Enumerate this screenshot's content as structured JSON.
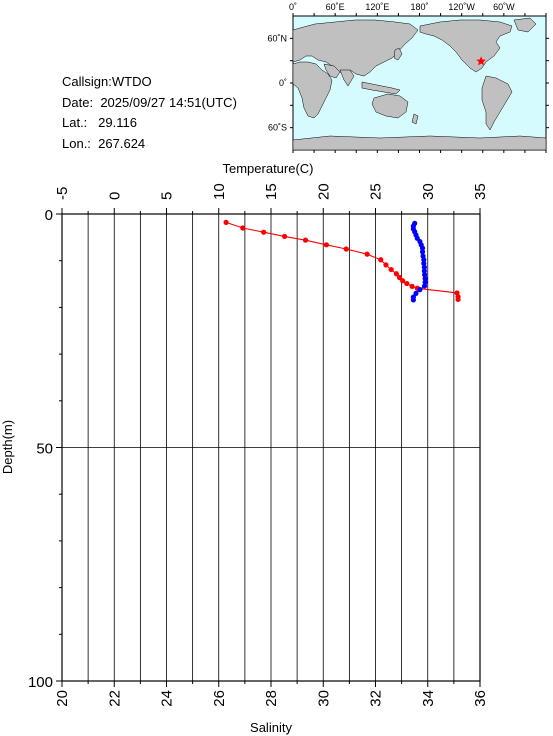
{
  "info": {
    "callsign_label": "Callsign:",
    "callsign": "WTDO",
    "date_label": "Date:",
    "date": "2025/09/27 14:51(UTC)",
    "lat_label": "Lat.:",
    "lat": "29.116",
    "lon_label": "Lon.:",
    "lon": "267.624"
  },
  "map": {
    "top_labels": [
      "0˚",
      "60˚E",
      "120˚E",
      "180˚",
      "120˚W",
      "60˚W"
    ],
    "left_labels": [
      "60˚N",
      "0˚",
      "60˚S"
    ],
    "ocean_color": "#d6fbff",
    "land_color": "#c0c0c0",
    "marker_color": "#ff0000",
    "marker_icon": "star-icon"
  },
  "chart_data": {
    "type": "line",
    "top_axis": {
      "label": "Temperature(C)",
      "range": [
        -5,
        35
      ],
      "ticks": [
        -5,
        0,
        5,
        10,
        15,
        20,
        25,
        30,
        35
      ]
    },
    "bottom_axis": {
      "label": "Salinity",
      "range": [
        20,
        36
      ],
      "ticks": [
        20,
        22,
        24,
        26,
        28,
        30,
        32,
        34,
        36
      ]
    },
    "y_axis": {
      "label": "Depth(m)",
      "range": [
        0,
        100
      ],
      "inverted": true,
      "ticks": [
        0,
        50,
        100
      ]
    },
    "grid": true,
    "series": [
      {
        "axis": "temperature",
        "color": "#ff0000",
        "points": [
          {
            "x": 10.7,
            "y": 1.8
          },
          {
            "x": 12.3,
            "y": 3.0
          },
          {
            "x": 14.3,
            "y": 3.9
          },
          {
            "x": 16.3,
            "y": 4.8
          },
          {
            "x": 18.3,
            "y": 5.6
          },
          {
            "x": 20.3,
            "y": 6.6
          },
          {
            "x": 22.2,
            "y": 7.5
          },
          {
            "x": 24.2,
            "y": 8.6
          },
          {
            "x": 25.5,
            "y": 9.8
          },
          {
            "x": 26.0,
            "y": 10.9
          },
          {
            "x": 26.5,
            "y": 11.9
          },
          {
            "x": 27.0,
            "y": 12.8
          },
          {
            "x": 27.3,
            "y": 13.6
          },
          {
            "x": 27.6,
            "y": 14.3
          },
          {
            "x": 28.0,
            "y": 14.9
          },
          {
            "x": 28.5,
            "y": 15.5
          },
          {
            "x": 29.0,
            "y": 15.9
          },
          {
            "x": 32.8,
            "y": 16.9
          },
          {
            "x": 32.9,
            "y": 17.7
          },
          {
            "x": 32.9,
            "y": 18.3
          }
        ]
      },
      {
        "axis": "salinity",
        "color": "#0000ff",
        "points": [
          {
            "x": 33.5,
            "y": 2.0
          },
          {
            "x": 33.45,
            "y": 2.6
          },
          {
            "x": 33.45,
            "y": 3.2
          },
          {
            "x": 33.5,
            "y": 3.8
          },
          {
            "x": 33.55,
            "y": 4.5
          },
          {
            "x": 33.6,
            "y": 5.2
          },
          {
            "x": 33.7,
            "y": 5.9
          },
          {
            "x": 33.75,
            "y": 6.6
          },
          {
            "x": 33.8,
            "y": 7.3
          },
          {
            "x": 33.8,
            "y": 8.1
          },
          {
            "x": 33.82,
            "y": 9.0
          },
          {
            "x": 33.85,
            "y": 9.8
          },
          {
            "x": 33.85,
            "y": 10.6
          },
          {
            "x": 33.87,
            "y": 11.4
          },
          {
            "x": 33.87,
            "y": 12.2
          },
          {
            "x": 33.88,
            "y": 13.0
          },
          {
            "x": 33.9,
            "y": 13.8
          },
          {
            "x": 33.9,
            "y": 14.6
          },
          {
            "x": 33.88,
            "y": 15.4
          },
          {
            "x": 33.7,
            "y": 16.2
          },
          {
            "x": 33.55,
            "y": 17.0
          },
          {
            "x": 33.45,
            "y": 17.8
          },
          {
            "x": 33.45,
            "y": 18.4
          }
        ]
      }
    ]
  }
}
